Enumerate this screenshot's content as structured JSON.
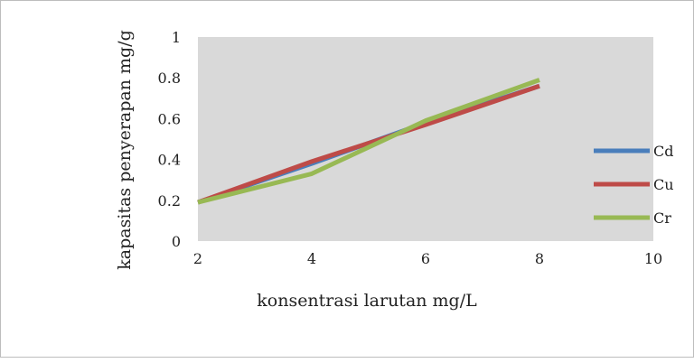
{
  "chart_data": {
    "type": "line",
    "title": "",
    "xlabel": "konsentrasi larutan mg/L",
    "ylabel": "kapasitas penyerapan mg/g",
    "xlim": [
      2,
      10
    ],
    "ylim": [
      0,
      1
    ],
    "x_ticks": [
      "2",
      "4",
      "6",
      "8",
      "10"
    ],
    "y_ticks": [
      "0",
      "0.2",
      "0.4",
      "0.6",
      "0.8",
      "1"
    ],
    "grid": false,
    "plot_background": "#d9d9d9",
    "legend_position": "right",
    "series": [
      {
        "name": "Cd",
        "color": "#4a7ebb",
        "x": [
          2,
          4,
          6,
          8
        ],
        "y": [
          0.19,
          0.38,
          0.58,
          0.76
        ]
      },
      {
        "name": "Cu",
        "color": "#be4b48",
        "x": [
          2,
          4,
          6,
          8
        ],
        "y": [
          0.19,
          0.39,
          0.57,
          0.76
        ]
      },
      {
        "name": "Cr",
        "color": "#98b954",
        "x": [
          2,
          4,
          6,
          8
        ],
        "y": [
          0.19,
          0.33,
          0.59,
          0.79
        ]
      }
    ]
  }
}
